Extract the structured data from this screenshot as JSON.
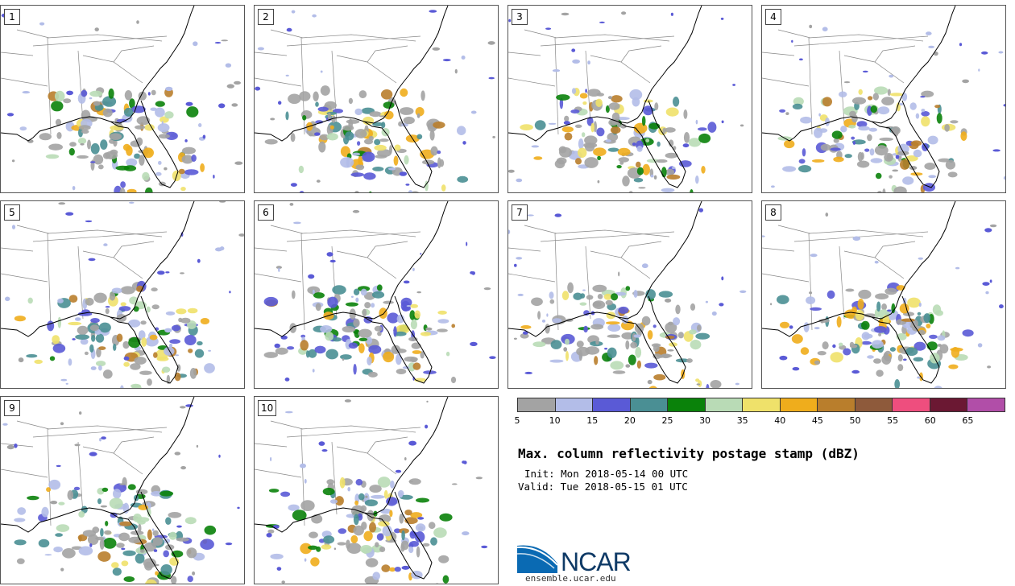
{
  "members": [
    "1",
    "2",
    "3",
    "4",
    "5",
    "6",
    "7",
    "8",
    "9",
    "10"
  ],
  "colorbar": {
    "colors": [
      "#a3a3a3",
      "#b3bde8",
      "#5a5ad6",
      "#4a8f94",
      "#0a820a",
      "#b9dbb6",
      "#efe16a",
      "#efad1c",
      "#b97e2c",
      "#8e5a3b",
      "#ee4e7e",
      "#6b1833",
      "#b14ea8"
    ],
    "ticks": [
      "5",
      "10",
      "15",
      "20",
      "25",
      "30",
      "35",
      "40",
      "45",
      "50",
      "55",
      "60",
      "65"
    ]
  },
  "title": "Max. column reflectivity postage stamp (dBZ)",
  "init": "Init: Mon 2018-05-14 00 UTC",
  "valid": "Valid: Tue 2018-05-15 01 UTC",
  "logo": {
    "text": "NCAR",
    "url": "ensemble.ucar.edu",
    "color": "#0a6ab3"
  }
}
